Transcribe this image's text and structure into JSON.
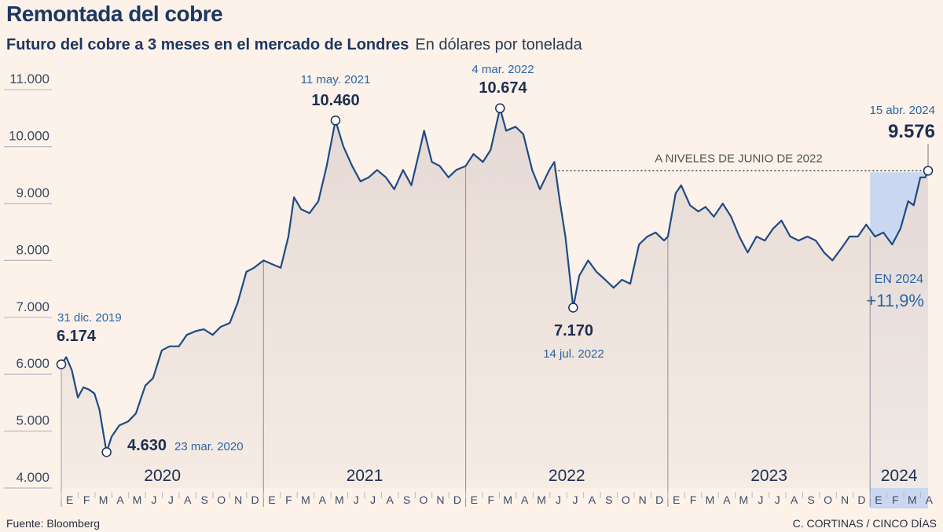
{
  "header": {
    "title": "Remontada del cobre",
    "subtitle": "Futuro del cobre a 3 meses en el mercado de Londres",
    "unit": "En dólares por tonelada"
  },
  "footer": {
    "source": "Fuente: Bloomberg",
    "credit": "C. CORTINAS / CINCO DÍAS"
  },
  "colors": {
    "line": "#1f4b85",
    "area": "#e9ddd8",
    "highlight_2024": "#c9d8f0",
    "background": "#fcf2e9",
    "text": "#1d3763",
    "annotation": "#2a64a8"
  },
  "chart_data": {
    "type": "line",
    "title": "Remontada del cobre",
    "subtitle": "Futuro del cobre a 3 meses en el mercado de Londres",
    "ylabel": "En dólares por tonelada",
    "ylim": [
      4000,
      11000
    ],
    "yticks": [
      4000,
      5000,
      6000,
      7000,
      8000,
      9000,
      10000,
      11000
    ],
    "ytick_labels": [
      "4.000",
      "5.000",
      "6.000",
      "7.000",
      "8.000",
      "9.000",
      "10.000",
      "11.000"
    ],
    "xlim": [
      "2020-01-01",
      "2024-04-15"
    ],
    "years": [
      "2020",
      "2021",
      "2022",
      "2023",
      "2024"
    ],
    "months": [
      "E",
      "F",
      "M",
      "A",
      "M",
      "J",
      "J",
      "A",
      "S",
      "O",
      "N",
      "D"
    ],
    "months_2024": [
      "E",
      "F",
      "M",
      "A"
    ],
    "grid": "horizontal",
    "area_fill": true,
    "highlight": {
      "from": "2024-01-01",
      "to": "2024-04-15",
      "label": "EN 2024",
      "value_label": "+11,9%"
    },
    "reference_line": {
      "value": 9576,
      "from": "2022-06-10",
      "label": "A NIVELES DE JUNIO DE 2022"
    },
    "annotations": [
      {
        "date": "2020-01-01",
        "value": 6174,
        "date_label": "31 dic. 2019",
        "value_label": "6.174"
      },
      {
        "date": "2020-03-23",
        "value": 4630,
        "date_label": "23 mar. 2020",
        "value_label": "4.630"
      },
      {
        "date": "2021-05-11",
        "value": 10460,
        "date_label": "11 may. 2021",
        "value_label": "10.460"
      },
      {
        "date": "2022-03-04",
        "value": 10674,
        "date_label": "4 mar. 2022",
        "value_label": "10.674"
      },
      {
        "date": "2022-07-14",
        "value": 7170,
        "date_label": "14 jul. 2022",
        "value_label": "7.170"
      },
      {
        "date": "2024-04-15",
        "value": 9576,
        "date_label": "15 abr. 2024",
        "value_label": "9.576"
      }
    ],
    "series": [
      {
        "x": [
          "2020-01-01",
          "2020-01-10",
          "2020-01-20",
          "2020-01-31",
          "2020-02-10",
          "2020-02-20",
          "2020-03-01",
          "2020-03-10",
          "2020-03-23",
          "2020-04-01",
          "2020-04-15",
          "2020-05-01",
          "2020-05-15",
          "2020-06-01",
          "2020-06-15",
          "2020-07-01",
          "2020-07-15",
          "2020-08-01",
          "2020-08-15",
          "2020-09-01",
          "2020-09-15",
          "2020-10-01",
          "2020-10-15",
          "2020-11-01",
          "2020-11-15",
          "2020-12-01",
          "2020-12-15",
          "2021-01-01",
          "2021-01-15",
          "2021-02-01",
          "2021-02-15",
          "2021-02-25",
          "2021-03-10",
          "2021-03-25",
          "2021-04-10",
          "2021-04-25",
          "2021-05-11",
          "2021-05-25",
          "2021-06-10",
          "2021-06-25",
          "2021-07-10",
          "2021-07-25",
          "2021-08-10",
          "2021-08-25",
          "2021-09-10",
          "2021-09-25",
          "2021-10-10",
          "2021-10-18",
          "2021-11-01",
          "2021-11-15",
          "2021-12-01",
          "2021-12-15",
          "2022-01-01",
          "2022-01-15",
          "2022-02-01",
          "2022-02-15",
          "2022-03-04",
          "2022-03-15",
          "2022-04-01",
          "2022-04-15",
          "2022-05-01",
          "2022-05-15",
          "2022-06-01",
          "2022-06-10",
          "2022-06-20",
          "2022-06-30",
          "2022-07-14",
          "2022-07-25",
          "2022-08-10",
          "2022-08-25",
          "2022-09-10",
          "2022-09-25",
          "2022-10-10",
          "2022-10-25",
          "2022-11-10",
          "2022-11-25",
          "2022-12-10",
          "2022-12-25",
          "2023-01-01",
          "2023-01-15",
          "2023-01-25",
          "2023-02-10",
          "2023-02-25",
          "2023-03-10",
          "2023-03-25",
          "2023-04-10",
          "2023-04-25",
          "2023-05-10",
          "2023-05-25",
          "2023-06-10",
          "2023-06-25",
          "2023-07-10",
          "2023-07-25",
          "2023-08-10",
          "2023-08-25",
          "2023-09-10",
          "2023-09-25",
          "2023-10-10",
          "2023-10-25",
          "2023-11-10",
          "2023-11-25",
          "2023-12-10",
          "2023-12-25",
          "2024-01-10",
          "2024-01-25",
          "2024-02-10",
          "2024-02-25",
          "2024-03-10",
          "2024-03-20",
          "2024-04-01",
          "2024-04-10",
          "2024-04-15"
        ],
        "values": [
          6174,
          6300,
          6070,
          5590,
          5770,
          5730,
          5660,
          5380,
          4630,
          4900,
          5100,
          5170,
          5310,
          5800,
          5930,
          6420,
          6490,
          6490,
          6690,
          6760,
          6790,
          6690,
          6830,
          6900,
          7250,
          7800,
          7870,
          8000,
          7940,
          7870,
          8420,
          9110,
          8900,
          8830,
          9040,
          9660,
          10460,
          10010,
          9660,
          9390,
          9460,
          9590,
          9460,
          9250,
          9590,
          9320,
          9940,
          10280,
          9730,
          9660,
          9460,
          9590,
          9660,
          9870,
          9730,
          9940,
          10674,
          10280,
          10350,
          10220,
          9590,
          9250,
          9590,
          9730,
          9040,
          8420,
          7170,
          7730,
          8000,
          7800,
          7660,
          7520,
          7660,
          7590,
          8280,
          8420,
          8490,
          8350,
          8420,
          9180,
          9320,
          8970,
          8860,
          8940,
          8770,
          9000,
          8770,
          8420,
          8140,
          8420,
          8350,
          8560,
          8700,
          8420,
          8350,
          8420,
          8350,
          8140,
          8000,
          8210,
          8420,
          8420,
          8630,
          8420,
          8490,
          8280,
          8560,
          9040,
          8970,
          9460,
          9460,
          9576
        ]
      }
    ]
  }
}
